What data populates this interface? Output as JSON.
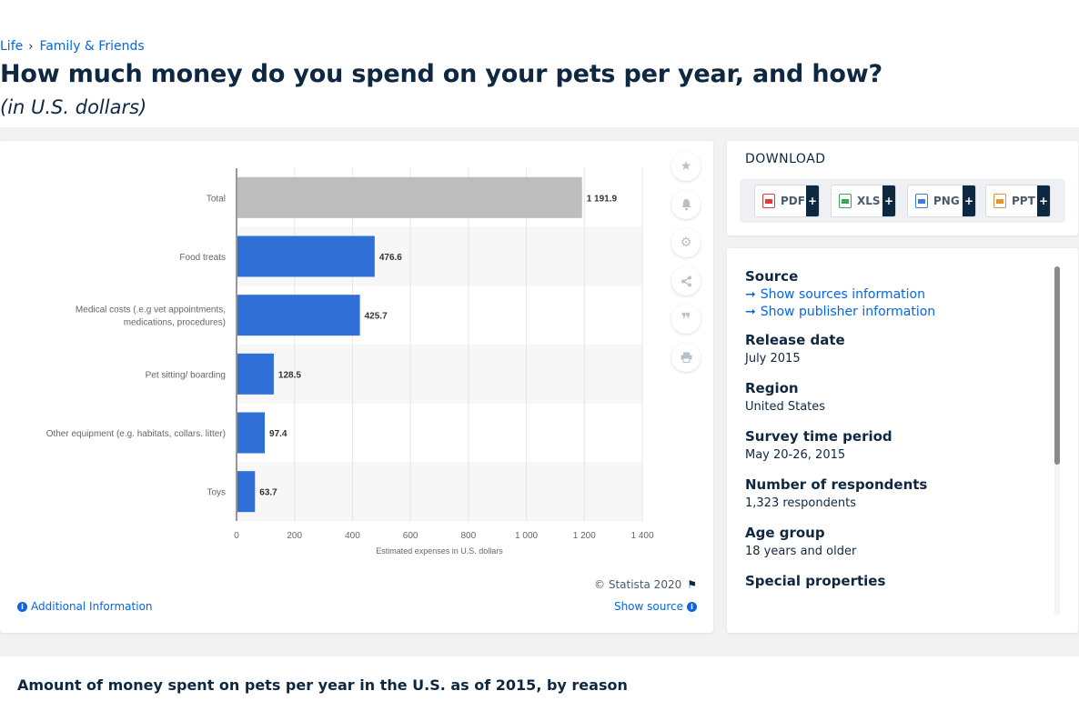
{
  "breadcrumb": {
    "items": [
      "Life",
      "Family & Friends"
    ],
    "separator": "›"
  },
  "page": {
    "title": "How much money do you spend on your pets per year, and how?",
    "subtitle": "(in U.S. dollars)"
  },
  "chart_data": {
    "type": "bar",
    "orientation": "horizontal",
    "categories": [
      "Total",
      "Food treats",
      "Medical costs (.e.g vet appointments, medications, procedures)",
      "Pet sitting/ boarding",
      "Other equipment (e.g. habitats, collars. litter)",
      "Toys"
    ],
    "category_lines": [
      [
        "Total"
      ],
      [
        "Food treats"
      ],
      [
        "Medical costs (.e.g vet appointments,",
        "medications, procedures)"
      ],
      [
        "Pet sitting/ boarding"
      ],
      [
        "Other equipment (e.g. habitats, collars. litter)"
      ],
      [
        "Toys"
      ]
    ],
    "values": [
      1191.9,
      476.6,
      425.7,
      128.5,
      97.4,
      63.7
    ],
    "value_labels": [
      "1 191.9",
      "476.6",
      "425.7",
      "128.5",
      "97.4",
      "63.7"
    ],
    "xlabel": "Estimated expenses in U.S. dollars",
    "xlim": [
      0,
      1400
    ],
    "xticks": [
      0,
      200,
      400,
      600,
      800,
      1000,
      1200,
      1400
    ],
    "xtick_labels": [
      "0",
      "200",
      "400",
      "600",
      "800",
      "1 000",
      "1 200",
      "1 400"
    ],
    "colors": {
      "highlight": "#bdbdbd",
      "bars": "#2f6fd6",
      "band": "#f7f7f7",
      "grid": "#e6e6e6"
    },
    "grid": true
  },
  "chart_footer": {
    "copyright": "© Statista 2020",
    "additional_info": "Additional Information",
    "show_source": "Show source"
  },
  "tools": [
    "star-icon",
    "bell-icon",
    "gear-icon",
    "share-icon",
    "quote-icon",
    "print-icon"
  ],
  "download": {
    "title": "DOWNLOAD",
    "buttons": [
      {
        "label": "PDF",
        "color": "#e03a3a"
      },
      {
        "label": "XLS",
        "color": "#3aa757"
      },
      {
        "label": "PNG",
        "color": "#3b7dd8"
      },
      {
        "label": "PPT",
        "color": "#e8912d"
      }
    ],
    "plus": "+"
  },
  "info": {
    "source_head": "Source",
    "source_link": "Show sources information",
    "publisher_link": "Show publisher information",
    "release_head": "Release date",
    "release_val": "July 2015",
    "region_head": "Region",
    "region_val": "United States",
    "survey_head": "Survey time period",
    "survey_val": "May 20-26, 2015",
    "respondents_head": "Number of respondents",
    "respondents_val": "1,323 respondents",
    "age_head": "Age group",
    "age_val": "18 years and older",
    "special_head": "Special properties"
  },
  "bottom": {
    "title": "Amount of money spent on pets per year in the U.S. as of 2015, by reason"
  }
}
